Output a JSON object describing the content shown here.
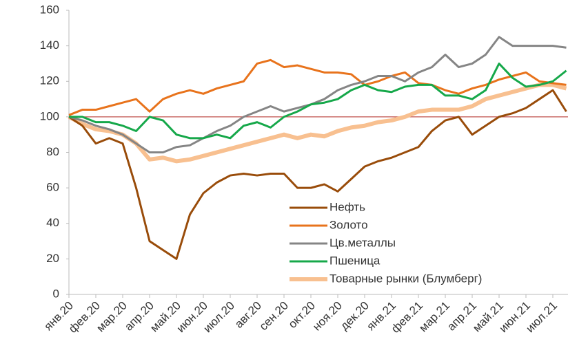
{
  "chart_data": {
    "type": "line",
    "categories": [
      "янв.20",
      null,
      "фев.20",
      null,
      "мар.20",
      null,
      "апр.20",
      null,
      "май.20",
      null,
      "июн.20",
      null,
      "июл.20",
      null,
      "авг.20",
      null,
      "сен.20",
      null,
      "окт.20",
      null,
      "ноя.20",
      null,
      "дек.20",
      null,
      "янв.21",
      null,
      "фев.21",
      null,
      "мар.21",
      null,
      "апр.21",
      null,
      "май.21",
      null,
      "июн.21",
      null,
      "июл.21",
      null
    ],
    "series": [
      {
        "name": "Нефть",
        "color": "#994c0a",
        "width": 3,
        "values": [
          100,
          95,
          85,
          88,
          85,
          60,
          30,
          25,
          20,
          45,
          57,
          63,
          67,
          68,
          67,
          68,
          68,
          60,
          60,
          62,
          58,
          65,
          72,
          75,
          77,
          80,
          83,
          92,
          98,
          100,
          90,
          95,
          100,
          102,
          105,
          110,
          115,
          103
        ]
      },
      {
        "name": "Золото",
        "color": "#e8731c",
        "width": 3,
        "values": [
          101,
          104,
          104,
          106,
          108,
          110,
          103,
          110,
          113,
          115,
          113,
          116,
          118,
          120,
          130,
          132,
          128,
          129,
          127,
          125,
          125,
          124,
          118,
          120,
          123,
          125,
          119,
          118,
          115,
          113,
          116,
          118,
          121,
          123,
          125,
          120,
          119,
          118
        ]
      },
      {
        "name": "Цв.металлы",
        "color": "#858585",
        "width": 3,
        "values": [
          100,
          98,
          95,
          93,
          90,
          85,
          80,
          80,
          83,
          84,
          88,
          92,
          95,
          100,
          103,
          106,
          103,
          105,
          107,
          110,
          115,
          118,
          120,
          123,
          123,
          120,
          125,
          128,
          135,
          128,
          130,
          135,
          145,
          140,
          140,
          140,
          140,
          139
        ]
      },
      {
        "name": "Пшеница",
        "color": "#16a84a",
        "width": 3,
        "values": [
          100,
          100,
          97,
          97,
          95,
          92,
          100,
          98,
          90,
          88,
          88,
          90,
          88,
          95,
          97,
          94,
          100,
          103,
          107,
          108,
          110,
          115,
          118,
          115,
          114,
          117,
          118,
          118,
          112,
          112,
          110,
          115,
          130,
          122,
          117,
          118,
          120,
          126
        ]
      },
      {
        "name": "Товарные рынки (Блумберг)",
        "color": "#f8c090",
        "width": 6,
        "values": [
          100,
          96,
          93,
          92,
          90,
          85,
          76,
          77,
          75,
          76,
          78,
          80,
          82,
          84,
          86,
          88,
          90,
          88,
          90,
          89,
          92,
          94,
          95,
          97,
          98,
          100,
          103,
          104,
          104,
          104,
          106,
          110,
          112,
          114,
          116,
          118,
          118,
          116
        ]
      }
    ],
    "ylim": [
      0,
      160
    ],
    "yticks": [
      0,
      20,
      40,
      60,
      80,
      100,
      120,
      140,
      160
    ],
    "reference_line": {
      "value": 100,
      "color": "#c0504d"
    },
    "grid": false,
    "legend": "bottom-right"
  }
}
